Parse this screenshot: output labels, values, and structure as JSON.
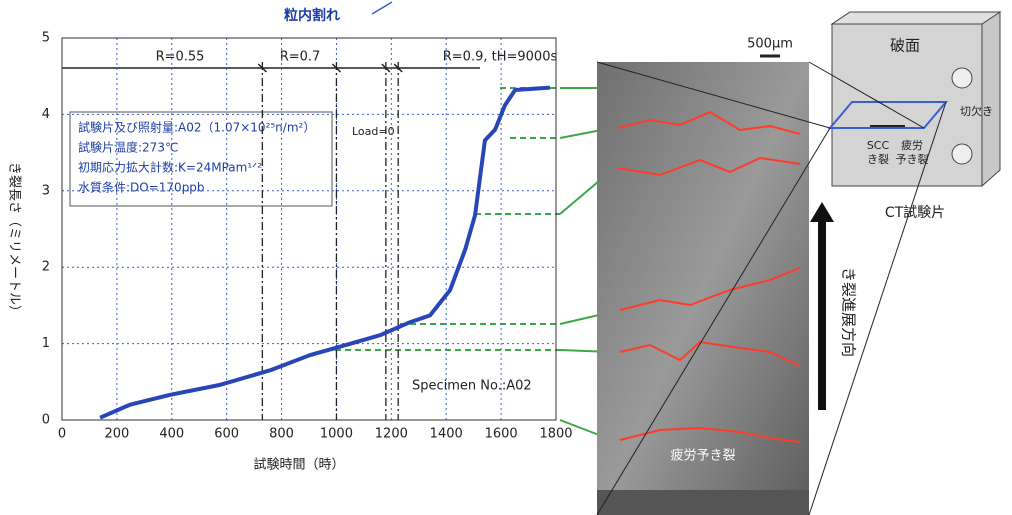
{
  "chart_data": {
    "type": "line",
    "title": "粒内割れ",
    "x_label": "試験時間（時）",
    "y_label": "き裂長さ（ミリメートル）",
    "xlim": [
      0,
      1800
    ],
    "xticks": [
      0,
      200,
      400,
      600,
      800,
      1000,
      1200,
      1400,
      1600,
      1800
    ],
    "ylim": [
      0,
      5
    ],
    "yticks": [
      0,
      1,
      2,
      3,
      4,
      5
    ],
    "grid": true,
    "series": [
      {
        "color": "#2746b8",
        "x": [
          139,
          248,
          394,
          576,
          758,
          904,
          1013,
          1159,
          1268,
          1341,
          1414,
          1469,
          1505,
          1541,
          1578,
          1614,
          1651,
          1778
        ],
        "values": [
          0.03,
          0.2,
          0.33,
          0.46,
          0.65,
          0.85,
          0.96,
          1.11,
          1.28,
          1.37,
          1.7,
          2.23,
          2.68,
          3.66,
          3.8,
          4.12,
          4.32,
          4.35
        ]
      }
    ],
    "reference_lines": [
      730,
      1000,
      1180,
      1225
    ],
    "regions": [
      "R=0.55",
      "R=0.7",
      "R=0.9, tH=9000s"
    ],
    "load_label": "Load=0",
    "info_box": [
      "試験片及び照射量:A02（1.07×10²⁵n/m²）",
      "試験片温度:273℃",
      "初期応力拡大計数:K=24MPam¹ᐟ²",
      "水質条件:DO=170ppb"
    ],
    "specimen": "Specimen No.:A02"
  },
  "photo": {
    "scale": "500μm",
    "label": "疲労予き裂"
  },
  "diagram": {
    "fracture_surface": "破面",
    "notch": "切欠き",
    "scc": "SCC",
    "scc2": "き裂",
    "fatigue": "疲労",
    "fatigue2": "予き裂",
    "caption": "CT試験片",
    "direction": "き裂進展方向"
  }
}
